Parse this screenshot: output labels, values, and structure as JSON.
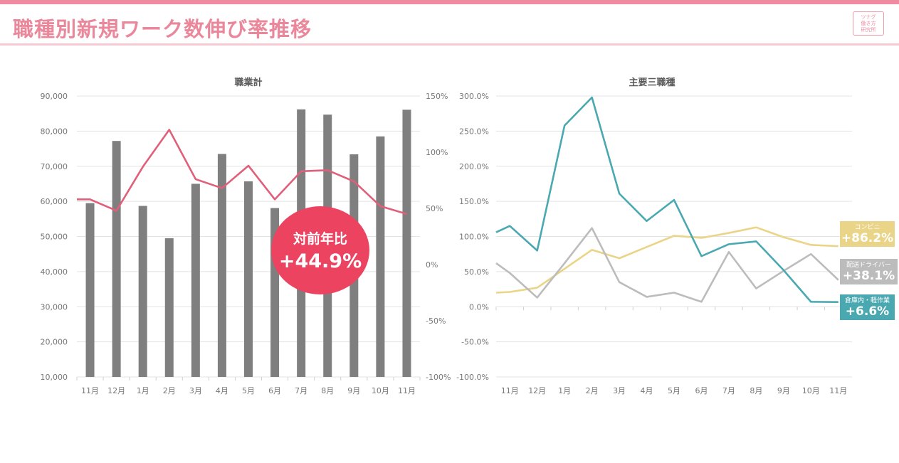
{
  "page": {
    "title": "職種別新規ワーク数伸び率推移",
    "logo_lines": [
      "ツナグ",
      "働き方",
      "研究所"
    ]
  },
  "badge": {
    "label": "対前年比",
    "value": "+44.9%"
  },
  "callouts": [
    {
      "name": "コンビニ",
      "value": "+86.2%",
      "color": "#ead487"
    },
    {
      "name": "配送ドライバー",
      "value": "+38.1%",
      "color": "#bcbcbc"
    },
    {
      "name": "倉庫内・軽作業",
      "value": "+6.6%",
      "color": "#4aa8b0"
    }
  ],
  "chart_data": [
    {
      "type": "bar",
      "title": "職業計",
      "categories": [
        "11月",
        "12月",
        "1月",
        "2月",
        "3月",
        "4月",
        "5月",
        "6月",
        "7月",
        "8月",
        "9月",
        "10月",
        "11月"
      ],
      "y_ticks": [
        "90,000",
        "80,000",
        "70,000",
        "60,000",
        "50,000",
        "40,000",
        "30,000",
        "20,000",
        "10,000"
      ],
      "y2_ticks": [
        "150%",
        "100%",
        "50%",
        "0%",
        "-50%",
        "-100%"
      ],
      "ylim": [
        10000,
        90000
      ],
      "y2lim": [
        -100,
        150
      ],
      "grid": true,
      "series": [
        {
          "type": "bar",
          "axis": "left",
          "color": "#7f7f7f",
          "values": [
            59500,
            77200,
            58700,
            49500,
            65000,
            73500,
            65700,
            58100,
            86200,
            84700,
            73400,
            78500,
            86100
          ]
        },
        {
          "type": "line",
          "axis": "right",
          "color": "#e0607a",
          "values": [
            58,
            48,
            87,
            120,
            76,
            68,
            88,
            58,
            83,
            84,
            74,
            52,
            45
          ]
        }
      ]
    },
    {
      "type": "line",
      "title": "主要三職種",
      "categories": [
        "11月",
        "12月",
        "1月",
        "2月",
        "3月",
        "4月",
        "5月",
        "6月",
        "7月",
        "8月",
        "9月",
        "10月",
        "11月"
      ],
      "y_ticks": [
        "300.0%",
        "250.0%",
        "200.0%",
        "150.0%",
        "100.0%",
        "50.0%",
        "0.0%",
        "-50.0%",
        "-100.0%"
      ],
      "ylim": [
        -100,
        300
      ],
      "grid": true,
      "series": [
        {
          "name": "コンビニ",
          "color": "#ead487",
          "values": [
            21,
            27,
            54,
            81,
            69,
            85,
            101,
            98,
            105,
            113,
            99,
            88,
            86.2
          ]
        },
        {
          "name": "配送ドライバー",
          "color": "#bcbcbc",
          "values": [
            48,
            13,
            62,
            112,
            35,
            14,
            20,
            7,
            78,
            26,
            51,
            75,
            38.1
          ]
        },
        {
          "name": "倉庫内・軽作業",
          "color": "#4aa8b0",
          "values": [
            115,
            80,
            258,
            298,
            161,
            122,
            152,
            72,
            89,
            93,
            52,
            7,
            6.6
          ]
        }
      ]
    }
  ]
}
